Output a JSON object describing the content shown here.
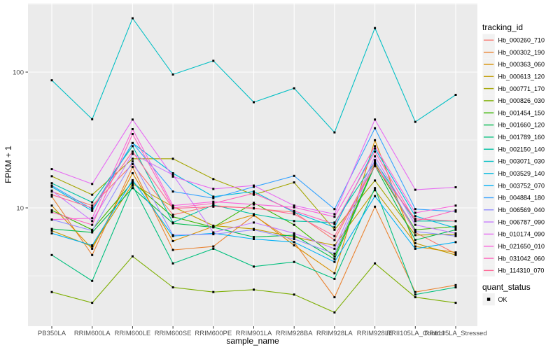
{
  "chart_data": {
    "type": "line",
    "title": "",
    "xlabel": "sample_name",
    "ylabel": "FPKM + 1",
    "x_categories": [
      "PB350LA",
      "RRIM600LA",
      "RRIM600LE",
      "RRIM600SE",
      "RRIM600PE",
      "RRIM901LA",
      "RRIM928BA",
      "RRIM928LA",
      "RRIM928LE",
      "RRII105LA_Control",
      "RRII105LA_Stressed"
    ],
    "y_scale": "log10",
    "y_ticks": [
      {
        "label": "100",
        "value": 100
      },
      {
        "label": "10",
        "value": 10
      }
    ],
    "y_minor_gridlines": [
      316.23,
      31.62,
      3.162
    ],
    "ylim_approx": [
      1.35,
      320
    ],
    "grid": "on",
    "legend_position": "right",
    "point_marker": "black-square",
    "legend": {
      "title": "tracking_id"
    },
    "quant_legend": {
      "title": "quant_status",
      "entries": [
        {
          "label": "OK",
          "marker": "black-square"
        }
      ]
    },
    "series": [
      {
        "name": "Hb_000260_710",
        "color": "#F8766D",
        "values": [
          13.2,
          10.4,
          21,
          8.9,
          10.4,
          9.9,
          9.3,
          5.8,
          21.5,
          6.6,
          4.6
        ]
      },
      {
        "name": "Hb_000302_190",
        "color": "#EA8331",
        "values": [
          12.1,
          4.5,
          20,
          4.9,
          5.2,
          8.8,
          5.6,
          2.2,
          10.2,
          2.4,
          2.7
        ]
      },
      {
        "name": "Hb_000363_060",
        "color": "#D89000",
        "values": [
          10.4,
          5.0,
          18,
          5.7,
          7.3,
          8.9,
          5.3,
          3.3,
          31.5,
          5.2,
          4.7
        ]
      },
      {
        "name": "Hb_000613_120",
        "color": "#C09B00",
        "values": [
          6.8,
          5.2,
          15,
          10.2,
          7.4,
          7.0,
          6.1,
          5.3,
          13.5,
          5.5,
          4.5
        ]
      },
      {
        "name": "Hb_000771_170",
        "color": "#A3A500",
        "values": [
          17.1,
          12.5,
          23,
          23,
          16.3,
          12.5,
          15.4,
          6.9,
          15.9,
          6.3,
          6.4
        ]
      },
      {
        "name": "Hb_000826_030",
        "color": "#7CAE00",
        "values": [
          2.4,
          2.0,
          4.4,
          2.6,
          2.4,
          2.5,
          2.3,
          1.7,
          3.9,
          2.2,
          2.0
        ]
      },
      {
        "name": "Hb_001454_150",
        "color": "#39B600",
        "values": [
          9.6,
          6.9,
          15.5,
          8.6,
          7.2,
          10.9,
          7.5,
          4.4,
          21,
          6.9,
          7.3
        ]
      },
      {
        "name": "Hb_001660_120",
        "color": "#00BB4E",
        "values": [
          7.0,
          6.6,
          14,
          7.7,
          7.2,
          6.1,
          6.3,
          4.2,
          20.5,
          5.8,
          6.9
        ]
      },
      {
        "name": "Hb_001789_160",
        "color": "#00BF7D",
        "values": [
          4.5,
          2.9,
          14.6,
          3.9,
          5.0,
          3.7,
          4.0,
          3.0,
          14,
          2.3,
          2.6
        ]
      },
      {
        "name": "Hb_002150_140",
        "color": "#00C1A3",
        "values": [
          15.2,
          11,
          28.5,
          7.8,
          10.5,
          9.0,
          8.0,
          7.8,
          22,
          8.0,
          8.0
        ]
      },
      {
        "name": "Hb_003071_030",
        "color": "#00BFC4",
        "values": [
          87,
          45,
          249,
          96,
          121,
          60,
          76,
          36,
          211,
          43,
          68
        ]
      },
      {
        "name": "Hb_003529_140",
        "color": "#00BAE0",
        "values": [
          14.3,
          9.5,
          30,
          18,
          12.1,
          13.2,
          9.3,
          7.2,
          27.4,
          8.7,
          7.1
        ]
      },
      {
        "name": "Hb_003752_070",
        "color": "#00B0F6",
        "values": [
          6.5,
          5.3,
          16,
          6.2,
          6.5,
          5.9,
          5.6,
          4.0,
          12.2,
          5.0,
          5.6
        ]
      },
      {
        "name": "Hb_004884_180",
        "color": "#35A2FF",
        "values": [
          14.6,
          9.8,
          30,
          13.2,
          11.8,
          14.3,
          17.2,
          9.8,
          38.6,
          9.8,
          9.4
        ]
      },
      {
        "name": "Hb_006569_040",
        "color": "#9590FF",
        "values": [
          8.2,
          6.8,
          22,
          6.3,
          6.4,
          6.9,
          5.9,
          4.6,
          22.5,
          6.7,
          6.2
        ]
      },
      {
        "name": "Hb_006787_090",
        "color": "#C77CFF",
        "values": [
          13.4,
          8.0,
          25,
          17.5,
          6.6,
          7.8,
          6.5,
          5.0,
          24,
          7.5,
          6.5
        ]
      },
      {
        "name": "Hb_010174_090",
        "color": "#E76BF3",
        "values": [
          19.3,
          15,
          44.7,
          17,
          13.8,
          14.6,
          10.4,
          9.0,
          44.7,
          13.6,
          14.2
        ]
      },
      {
        "name": "Hb_021650_010",
        "color": "#FA62DB",
        "values": [
          8.2,
          8.4,
          38,
          10.4,
          11.1,
          10.6,
          10.1,
          8.6,
          28.5,
          9.2,
          10.4
        ]
      },
      {
        "name": "Hb_031042_060",
        "color": "#FF62BC",
        "values": [
          9.3,
          7.5,
          35,
          10.0,
          10.8,
          12.8,
          9.5,
          7.6,
          26,
          8.0,
          9.6
        ]
      },
      {
        "name": "Hb_114310_070",
        "color": "#FF6A98",
        "values": [
          12.5,
          10.0,
          26,
          9.9,
          10.2,
          10.0,
          9.0,
          6.2,
          20.3,
          8.3,
          8.0
        ]
      }
    ]
  },
  "colors": {
    "panel_background": "#EBEBEB",
    "gridline": "#FFFFFF",
    "tick_label": "#4D4D4D",
    "tick_mark": "#333333",
    "legend_key_background": "#F2F2F2",
    "marker": "#000000"
  }
}
